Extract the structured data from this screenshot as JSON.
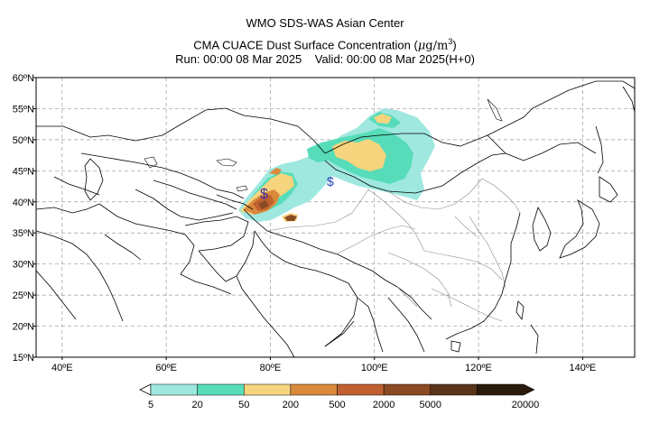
{
  "title": {
    "line1": "WMO SDS-WAS Asian Center",
    "line2_prefix": "CMA CUACE Dust Surface Concentration (",
    "line2_unit_mu": "μ",
    "line2_unit_g": "g/m",
    "line2_unit_exp": "3",
    "line2_suffix": ")",
    "line3": "Run: 00:00 08 Mar 2025    Valid: 00:00 08 Mar 2025(H+0)"
  },
  "map": {
    "lon_range": [
      35,
      150
    ],
    "lat_range": [
      15,
      60
    ],
    "lon_ticks": [
      "40ºE",
      "60ºE",
      "80ºE",
      "100ºE",
      "120ºE",
      "140ºE"
    ],
    "lat_ticks": [
      "15ºN",
      "20ºN",
      "25ºN",
      "30ºN",
      "35ºN",
      "40ºN",
      "45ºN",
      "50ºN",
      "55ºN",
      "60ºN"
    ],
    "grid": "dashed",
    "markers": [
      "$",
      "$"
    ]
  },
  "colorbar": {
    "levels": [
      "5",
      "20",
      "50",
      "200",
      "500",
      "2000",
      "5000",
      "20000"
    ],
    "colors": [
      "#9fe8e0",
      "#57dcb9",
      "#f7d47e",
      "#d98a3d",
      "#c0602e",
      "#8a4a23",
      "#5a3418",
      "#2a1a0c"
    ]
  }
}
